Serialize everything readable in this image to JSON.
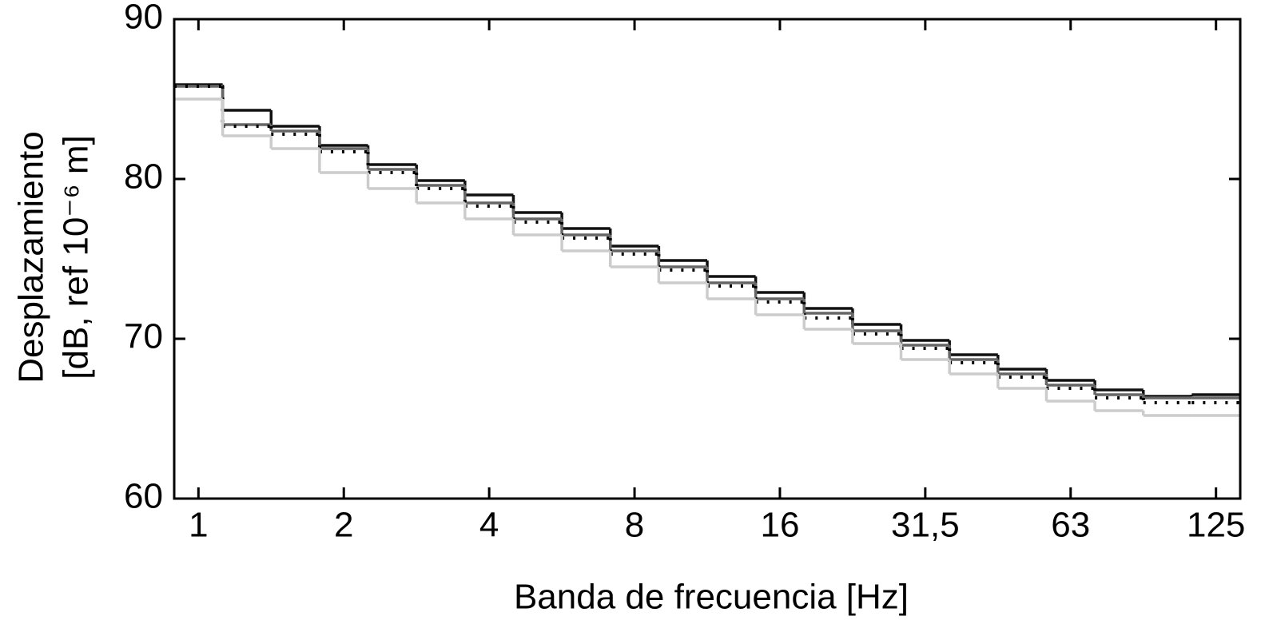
{
  "chart_data": {
    "type": "step",
    "xlabel": "Banda de frecuencia [Hz]",
    "ylabel": [
      "Desplazamiento",
      "[dB, ref 10⁻⁶ m]"
    ],
    "categories": [
      "1",
      null,
      null,
      "2",
      null,
      null,
      "4",
      null,
      null,
      "8",
      null,
      null,
      "16",
      null,
      null,
      "31,5",
      null,
      null,
      "63",
      null,
      null,
      "125"
    ],
    "ylim": [
      60,
      90
    ],
    "yticks": [
      60,
      70,
      80,
      90
    ],
    "series": [
      {
        "color": "#111111",
        "linestyle": "solid",
        "values": [
          85.9,
          84.3,
          83.3,
          82.1,
          80.9,
          79.9,
          79.0,
          77.9,
          76.9,
          75.8,
          74.9,
          73.9,
          72.9,
          71.9,
          70.9,
          69.9,
          69.0,
          68.1,
          67.4,
          66.8,
          66.4,
          66.5
        ]
      },
      {
        "color": "#666666",
        "linestyle": "solid",
        "values": [
          85.8,
          83.4,
          83.0,
          81.9,
          80.6,
          79.6,
          78.5,
          77.5,
          76.5,
          75.5,
          74.5,
          73.5,
          72.5,
          71.6,
          70.5,
          69.6,
          68.7,
          67.8,
          67.1,
          66.5,
          66.3,
          66.3
        ]
      },
      {
        "color": "#000000",
        "linestyle": "dotted",
        "values": [
          85.8,
          83.3,
          82.8,
          81.7,
          80.4,
          79.4,
          78.3,
          77.3,
          76.3,
          75.3,
          74.3,
          73.3,
          72.3,
          71.3,
          70.3,
          69.4,
          68.5,
          67.6,
          66.9,
          66.3,
          66.0,
          66.0
        ]
      },
      {
        "color": "#cccccc",
        "linestyle": "solid",
        "values": [
          85.0,
          82.7,
          81.9,
          80.4,
          79.4,
          78.5,
          77.5,
          76.5,
          75.5,
          74.5,
          73.5,
          72.5,
          71.5,
          70.6,
          69.7,
          68.7,
          67.8,
          66.9,
          66.1,
          65.5,
          65.2,
          65.2
        ]
      }
    ]
  }
}
